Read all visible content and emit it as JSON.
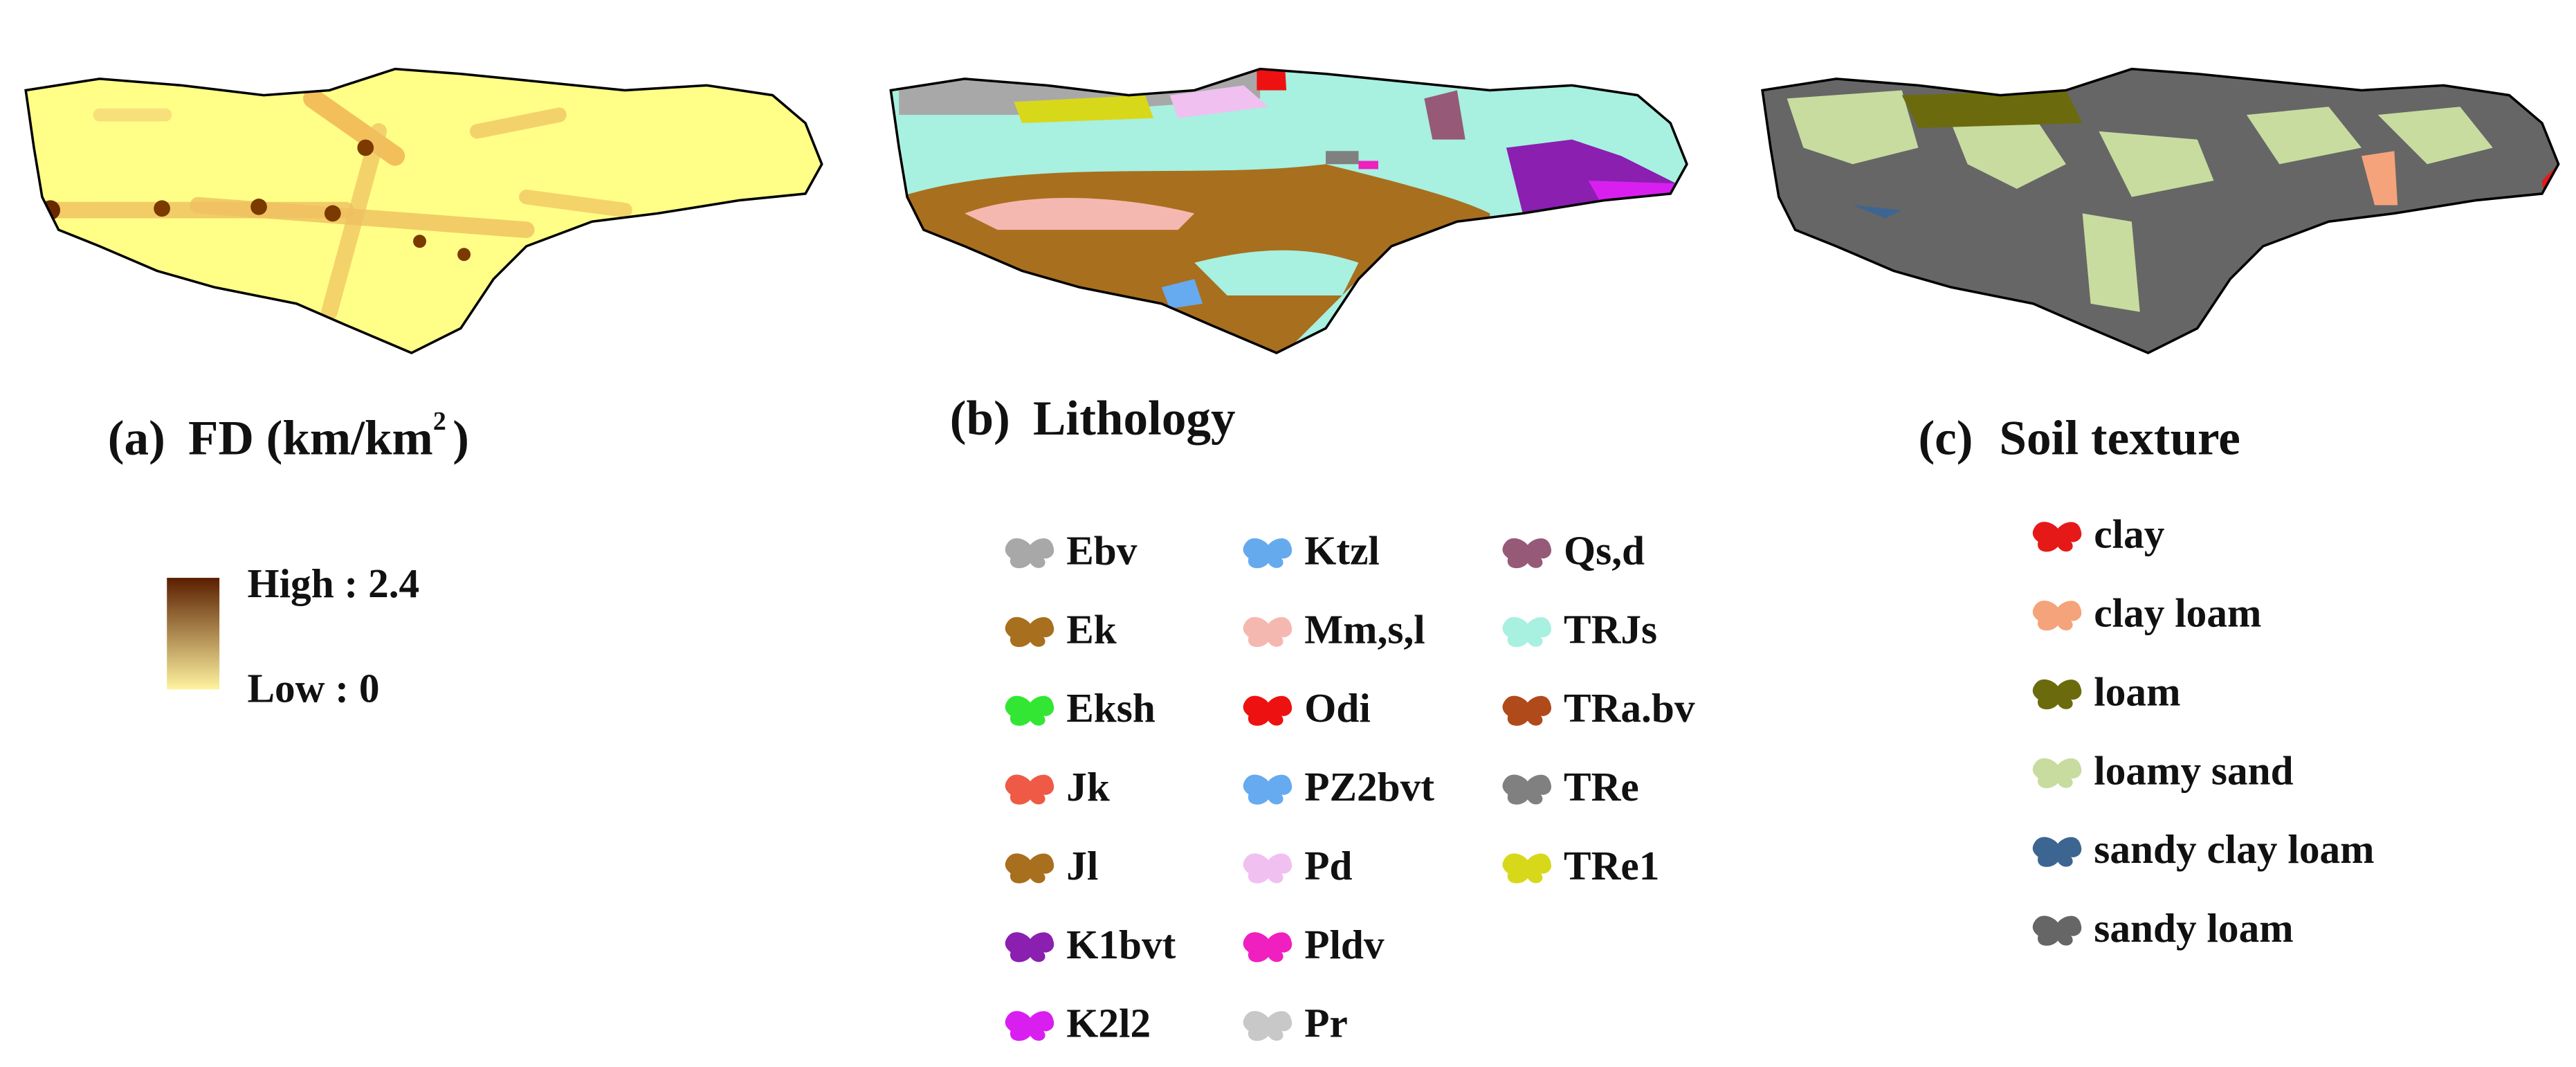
{
  "panels": [
    {
      "label": "(a)",
      "title": "FD (km/km",
      "title_sup": "2",
      "title_end": ")",
      "legend": {
        "high": "High : 2.4",
        "low": "Low : 0",
        "colors": [
          "#5a1e00",
          "#fff3a0"
        ]
      }
    },
    {
      "label": "(b)",
      "title": "Lithology",
      "legend": [
        {
          "name": "Ebv",
          "color": "#a8a8a8"
        },
        {
          "name": "Ek",
          "color": "#a86f1e"
        },
        {
          "name": "Eksh",
          "color": "#33e633"
        },
        {
          "name": "Jk",
          "color": "#ee5a45"
        },
        {
          "name": "Jl",
          "color": "#a86f1e"
        },
        {
          "name": "K1bvt",
          "color": "#8a1fb0"
        },
        {
          "name": "K2l2",
          "color": "#d91ff0"
        },
        {
          "name": "Ktzl",
          "color": "#66aaee"
        },
        {
          "name": "Mm,s,l",
          "color": "#f5b8b0"
        },
        {
          "name": "Odi",
          "color": "#ee1111"
        },
        {
          "name": "PZ2bvt",
          "color": "#66aaf0"
        },
        {
          "name": "Pd",
          "color": "#f0c0f0"
        },
        {
          "name": "Pldv",
          "color": "#f01fbf"
        },
        {
          "name": "Pr",
          "color": "#c8c8c8"
        },
        {
          "name": "Qs,d",
          "color": "#965a78"
        },
        {
          "name": "TRJs",
          "color": "#a8f0e0"
        },
        {
          "name": "TRa.bv",
          "color": "#b04a1a"
        },
        {
          "name": "TRe",
          "color": "#808080"
        },
        {
          "name": "TRe1",
          "color": "#d8d81a"
        }
      ]
    },
    {
      "label": "(c)",
      "title": "Soil texture",
      "legend": [
        {
          "name": "clay",
          "color": "#e61919"
        },
        {
          "name": "clay loam",
          "color": "#f5a37a"
        },
        {
          "name": "loam",
          "color": "#6b6b0d"
        },
        {
          "name": "loamy sand",
          "color": "#c8dca0"
        },
        {
          "name": "sandy clay loam",
          "color": "#3d6591"
        },
        {
          "name": "sandy loam",
          "color": "#666666"
        }
      ]
    }
  ]
}
